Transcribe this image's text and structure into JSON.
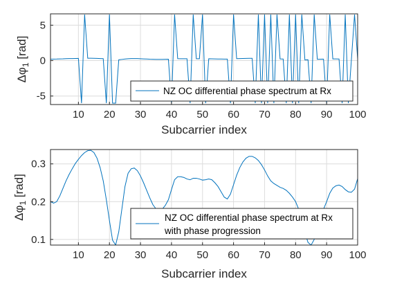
{
  "chart_data": [
    {
      "type": "line",
      "xlabel": "Subcarrier index",
      "ylabel": "Δφ",
      "ylabel_sub": "1",
      "ylabel_unit": " [rad]",
      "xlim": [
        1,
        100
      ],
      "ylim": [
        -6.2,
        6.6
      ],
      "xticks": [
        10,
        20,
        30,
        40,
        50,
        60,
        70,
        80,
        90,
        100
      ],
      "yticks": [
        -5,
        0,
        5
      ],
      "grid": true,
      "legend_position": "bottom-right",
      "color": "#0072bd",
      "series": [
        {
          "name": "NZ OC differential phase spectrum at Rx",
          "x": [
            1,
            2,
            3,
            4,
            5,
            6,
            7,
            8,
            9,
            10,
            11,
            12,
            13,
            14,
            15,
            16,
            17,
            18,
            19,
            20,
            21,
            22,
            23,
            24,
            25,
            26,
            27,
            28,
            29,
            30,
            31,
            32,
            33,
            34,
            35,
            36,
            37,
            38,
            39,
            40,
            41,
            42,
            43,
            44,
            45,
            46,
            47,
            48,
            49,
            50,
            51,
            52,
            53,
            54,
            55,
            56,
            57,
            58,
            59,
            60,
            61,
            62,
            63,
            64,
            65,
            66,
            67,
            68,
            69,
            70,
            71,
            72,
            73,
            74,
            75,
            76,
            77,
            78,
            79,
            80,
            81,
            82,
            83,
            84,
            85,
            86,
            87,
            88,
            89,
            90,
            91,
            92,
            93,
            94,
            95,
            96,
            97,
            98,
            99,
            100
          ],
          "y": [
            0.2,
            0.21,
            0.22,
            0.24,
            0.25,
            0.27,
            0.28,
            0.29,
            0.3,
            0.31,
            -6.0,
            6.5,
            0.33,
            0.33,
            0.32,
            0.31,
            0.29,
            0.27,
            -6.0,
            6.5,
            -6.0,
            -6.0,
            0.12,
            0.17,
            0.22,
            0.26,
            0.28,
            0.29,
            0.28,
            0.26,
            0.24,
            0.22,
            0.2,
            0.19,
            0.18,
            0.18,
            0.18,
            0.19,
            0.2,
            -6.0,
            6.5,
            0.27,
            0.26,
            0.26,
            0.26,
            -6.0,
            6.5,
            0.26,
            0.26,
            6.5,
            -6.0,
            0.26,
            0.25,
            0.24,
            0.23,
            0.22,
            0.21,
            0.21,
            -6.0,
            6.5,
            0.27,
            0.29,
            0.3,
            0.31,
            0.32,
            0.32,
            -6.0,
            6.5,
            -6.0,
            6.5,
            -6.0,
            6.5,
            -6.0,
            6.5,
            0.24,
            0.23,
            -6.0,
            6.5,
            -6.0,
            6.5,
            -6.0,
            6.5,
            0.09,
            0.12,
            -6.0,
            6.5,
            0.19,
            0.2,
            0.21,
            -6.0,
            6.5,
            0.24,
            0.24,
            0.23,
            -6.0,
            6.5,
            -6.0,
            0.21,
            6.5,
            0.24
          ]
        }
      ]
    },
    {
      "type": "line",
      "xlabel": "Subcarrier index",
      "ylabel": "Δφ",
      "ylabel_sub": "1",
      "ylabel_unit": " [rad]",
      "xlim": [
        1,
        100
      ],
      "ylim": [
        0.085,
        0.338
      ],
      "xticks": [
        10,
        20,
        30,
        40,
        50,
        60,
        70,
        80,
        90,
        100
      ],
      "yticks": [
        0.1,
        0.2,
        0.3
      ],
      "grid": true,
      "legend_position": "bottom-right",
      "color": "#0072bd",
      "series": [
        {
          "name": "NZ OC differential phase spectrum at Rx",
          "name_line2": "with phase progression",
          "x": [
            1,
            2,
            3,
            4,
            5,
            6,
            7,
            8,
            9,
            10,
            11,
            12,
            13,
            14,
            15,
            16,
            17,
            18,
            19,
            20,
            21,
            22,
            23,
            24,
            25,
            26,
            27,
            28,
            29,
            30,
            31,
            32,
            33,
            34,
            35,
            36,
            37,
            38,
            39,
            40,
            41,
            42,
            43,
            44,
            45,
            46,
            47,
            48,
            49,
            50,
            51,
            52,
            53,
            54,
            55,
            56,
            57,
            58,
            59,
            60,
            61,
            62,
            63,
            64,
            65,
            66,
            67,
            68,
            69,
            70,
            71,
            72,
            73,
            74,
            75,
            76,
            77,
            78,
            79,
            80,
            81,
            82,
            83,
            84,
            85,
            86,
            87,
            88,
            89,
            90,
            91,
            92,
            93,
            94,
            95,
            96,
            97,
            98,
            99,
            100
          ],
          "y": [
            0.2,
            0.196,
            0.2,
            0.215,
            0.235,
            0.255,
            0.272,
            0.287,
            0.301,
            0.312,
            0.322,
            0.33,
            0.335,
            0.336,
            0.33,
            0.315,
            0.29,
            0.255,
            0.205,
            0.15,
            0.098,
            0.085,
            0.12,
            0.18,
            0.24,
            0.275,
            0.287,
            0.289,
            0.282,
            0.268,
            0.25,
            0.23,
            0.21,
            0.192,
            0.181,
            0.177,
            0.18,
            0.19,
            0.205,
            0.232,
            0.258,
            0.266,
            0.266,
            0.264,
            0.26,
            0.258,
            0.262,
            0.262,
            0.26,
            0.257,
            0.258,
            0.26,
            0.258,
            0.25,
            0.24,
            0.226,
            0.212,
            0.207,
            0.22,
            0.245,
            0.27,
            0.29,
            0.305,
            0.315,
            0.32,
            0.32,
            0.316,
            0.309,
            0.298,
            0.284,
            0.268,
            0.255,
            0.248,
            0.243,
            0.238,
            0.235,
            0.23,
            0.222,
            0.212,
            0.2,
            0.18,
            0.15,
            0.118,
            0.092,
            0.085,
            0.1,
            0.125,
            0.155,
            0.18,
            0.2,
            0.222,
            0.236,
            0.242,
            0.244,
            0.24,
            0.232,
            0.226,
            0.225,
            0.233,
            0.261
          ]
        }
      ]
    }
  ]
}
